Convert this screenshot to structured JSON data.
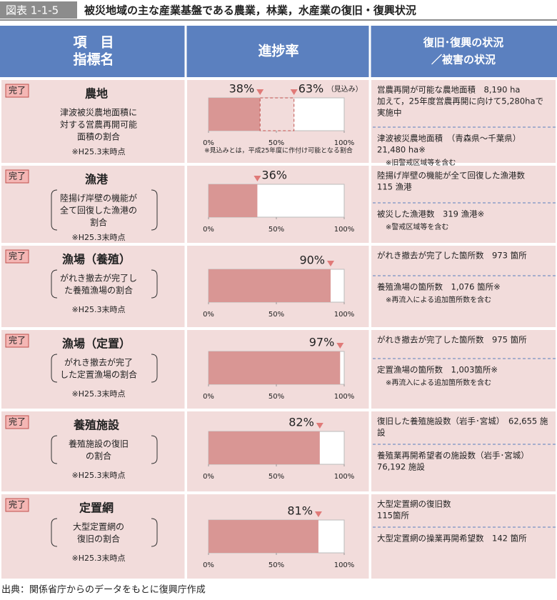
{
  "header": {
    "figure_label": "図表 1-1-5",
    "title": "被災地域の主な産業基盤である農業，林業，水産業の復旧・復興状況"
  },
  "table": {
    "columns": [
      [
        "項　目",
        "指標名"
      ],
      [
        "進捗率"
      ],
      [
        "復旧･復興の状況",
        "／被害の状況"
      ]
    ],
    "axis_ticks": [
      {
        "value": 0,
        "label": "0%"
      },
      {
        "value": 50,
        "label": "50%"
      },
      {
        "value": 100,
        "label": "100%"
      }
    ],
    "rows": [
      {
        "status": "完了",
        "name": "農地",
        "description": [
          "津波被災農地面積に",
          "対する営農再開可能",
          "面積の割合"
        ],
        "note": "※H25.3末時点",
        "progress": [
          {
            "value": 38,
            "label": "38%"
          },
          {
            "value": 63,
            "label": "63%"
          }
        ],
        "progress_suffix": "（見込み）",
        "progress_note": "※見込みとは，平成25年度に作付け可能となる割合",
        "sections": [
          {
            "lines": [
              "営農再開が可能な農地面積　8,190 ha",
              "加えて，25年度営農再開に向けて5,280haで",
              "実施中"
            ]
          },
          {
            "lines": [
              "津波被災農地面積　（青森県～千葉県）",
              "21,480 ha※"
            ],
            "note": "※旧警戒区域等を含む"
          }
        ]
      },
      {
        "status": "完了",
        "name": "漁港",
        "description": [
          "陸揚げ岸壁の機能が",
          "全て回復した漁港の",
          "割合"
        ],
        "note": "※H25.3末時点",
        "progress": [
          {
            "value": 36,
            "label": "36%"
          }
        ],
        "sections": [
          {
            "lines": [
              "陸揚げ岸壁の機能が全て回復した漁港数",
              "115 漁港"
            ]
          },
          {
            "lines": [
              "被災した漁港数　319 漁港※"
            ],
            "note": "※警戒区域等を含む"
          }
        ]
      },
      {
        "status": "完了",
        "name": "漁場（養殖）",
        "description": [
          "がれき撤去が完了し",
          "た養殖漁場の割合"
        ],
        "note": "※H25.3末時点",
        "progress": [
          {
            "value": 90,
            "label": "90%"
          }
        ],
        "sections": [
          {
            "lines": [
              "がれき撤去が完了した箇所数　973 箇所"
            ]
          },
          {
            "lines": [
              "養殖漁場の箇所数　1,076 箇所※"
            ],
            "note": "※再流入による追加箇所数を含む"
          }
        ]
      },
      {
        "status": "完了",
        "name": "漁場（定置）",
        "description": [
          "がれき撤去が完了",
          "した定置漁場の割合"
        ],
        "note": "※H25.3末時点",
        "progress": [
          {
            "value": 97,
            "label": "97%"
          }
        ],
        "sections": [
          {
            "lines": [
              "がれき撤去が完了した箇所数　975 箇所"
            ]
          },
          {
            "lines": [
              "定置漁場の箇所数　1,003箇所※"
            ],
            "note": "※再流入による追加箇所数を含む"
          }
        ]
      },
      {
        "status": "完了",
        "name": "養殖施設",
        "description": [
          "養殖施設の復旧",
          "の割合"
        ],
        "note": "※H25.3末時点",
        "progress": [
          {
            "value": 82,
            "label": "82%"
          }
        ],
        "sections": [
          {
            "lines": [
              "復旧した養殖施設数（岩手･宮城）　62,655 施",
              "設"
            ]
          },
          {
            "lines": [
              "養殖業再開希望者の施設数（岩手･宮城）",
              "76,192 施設"
            ]
          }
        ]
      },
      {
        "status": "完了",
        "name": "定置網",
        "description": [
          "大型定置網の",
          "復旧の割合"
        ],
        "note": "※H25.3末時点",
        "progress": [
          {
            "value": 81,
            "label": "81%"
          }
        ],
        "sections": [
          {
            "lines": [
              "大型定置網の復旧数",
              "115箇所"
            ]
          },
          {
            "lines": [
              "大型定置網の操業再開希望数　142 箇所"
            ]
          }
        ]
      }
    ]
  },
  "source": "出典：関係省庁からのデータをもとに復興庁作成"
}
